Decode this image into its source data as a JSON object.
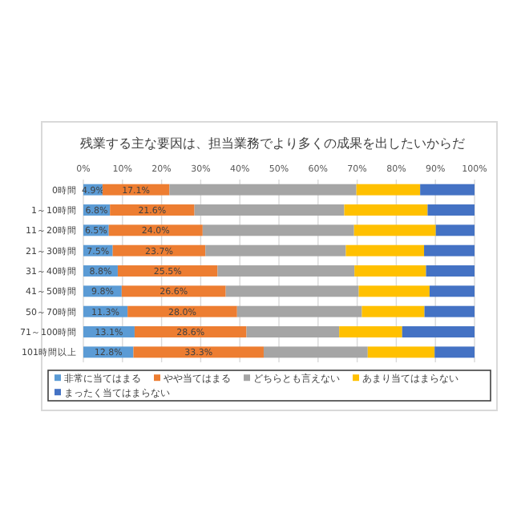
{
  "chart_data": {
    "type": "bar",
    "orientation": "horizontal",
    "stacked": true,
    "title": "残業する主な要因は、担当業務でより多くの成果を出したいからだ",
    "categories": [
      "0時間",
      "1～10時間",
      "11～20時間",
      "21～30時間",
      "31～40時間",
      "41～50時間",
      "50～70時間",
      "71～100時間",
      "101時間以上"
    ],
    "series": [
      {
        "name": "非常に当てはまる",
        "color": "#5b9bd5",
        "values": [
          4.9,
          6.8,
          6.5,
          7.5,
          8.8,
          9.8,
          11.3,
          13.1,
          12.8
        ],
        "value_labels": [
          "4.9%",
          "6.8%",
          "6.5%",
          "7.5%",
          "8.8%",
          "9.8%",
          "11.3%",
          "13.1%",
          "12.8%"
        ]
      },
      {
        "name": "やや当てはまる",
        "color": "#ed7d31",
        "values": [
          17.1,
          21.6,
          24.0,
          23.7,
          25.5,
          26.6,
          28.0,
          28.6,
          33.3
        ],
        "value_labels": [
          "17.1%",
          "21.6%",
          "24.0%",
          "23.7%",
          "25.5%",
          "26.6%",
          "28.0%",
          "28.6%",
          "33.3%"
        ]
      },
      {
        "name": "どちらとも言えない",
        "color": "#a5a5a5",
        "values": [
          47.8,
          38.3,
          38.7,
          35.9,
          35.0,
          34.0,
          31.9,
          23.7,
          26.6
        ]
      },
      {
        "name": "あまり当てはまらない",
        "color": "#ffc000",
        "values": [
          16.3,
          21.3,
          20.9,
          20.0,
          18.3,
          18.1,
          16.0,
          16.1,
          17.1
        ]
      },
      {
        "name": "まったく当てはまらない",
        "color": "#4472c4",
        "values": [
          13.9,
          12.0,
          9.9,
          12.9,
          12.4,
          11.5,
          12.8,
          18.5,
          10.2
        ]
      }
    ],
    "xlim": [
      0,
      100
    ],
    "xticks": [
      {
        "value": 0,
        "label": "0%"
      },
      {
        "value": 10,
        "label": "10%"
      },
      {
        "value": 20,
        "label": "20%"
      },
      {
        "value": 30,
        "label": "30%"
      },
      {
        "value": 40,
        "label": "40%"
      },
      {
        "value": 50,
        "label": "50%"
      },
      {
        "value": 60,
        "label": "60%"
      },
      {
        "value": 70,
        "label": "70%"
      },
      {
        "value": 80,
        "label": "80%"
      },
      {
        "value": 90,
        "label": "90%"
      },
      {
        "value": 100,
        "label": "100%"
      }
    ],
    "grid": "x",
    "legend": "bottom"
  }
}
